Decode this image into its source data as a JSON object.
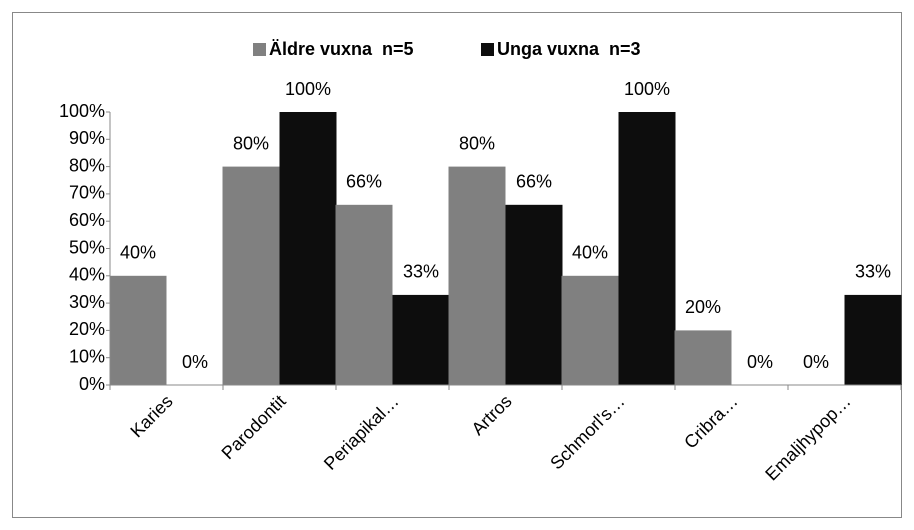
{
  "chart_data": {
    "type": "bar",
    "categories": [
      "Karies",
      "Parodontit",
      "Periapikal…",
      "Artros",
      "Schmorl's…",
      "Cribra…",
      "Emaljhypop…"
    ],
    "series": [
      {
        "name": "Äldre vuxna  n=5",
        "color": "#808080",
        "values": [
          40,
          80,
          66,
          80,
          40,
          20,
          0
        ],
        "value_labels": [
          "40%",
          "80%",
          "66%",
          "80%",
          "40%",
          "20%",
          "0%"
        ]
      },
      {
        "name": "Unga vuxna  n=3",
        "color": "#0d0d0d",
        "values": [
          0,
          100,
          33,
          66,
          100,
          0,
          33
        ],
        "value_labels": [
          "0%",
          "100%",
          "33%",
          "66%",
          "100%",
          "0%",
          "33%"
        ]
      }
    ],
    "ylim": [
      0,
      100
    ],
    "yticks": [
      {
        "value": 0,
        "label": "0%"
      },
      {
        "value": 10,
        "label": "10%"
      },
      {
        "value": 20,
        "label": "20%"
      },
      {
        "value": 30,
        "label": "30%"
      },
      {
        "value": 40,
        "label": "40%"
      },
      {
        "value": 50,
        "label": "50%"
      },
      {
        "value": 60,
        "label": "60%"
      },
      {
        "value": 70,
        "label": "70%"
      },
      {
        "value": 80,
        "label": "80%"
      },
      {
        "value": 90,
        "label": "90%"
      },
      {
        "value": 100,
        "label": "100%"
      }
    ],
    "legend": "top",
    "grid": false
  }
}
